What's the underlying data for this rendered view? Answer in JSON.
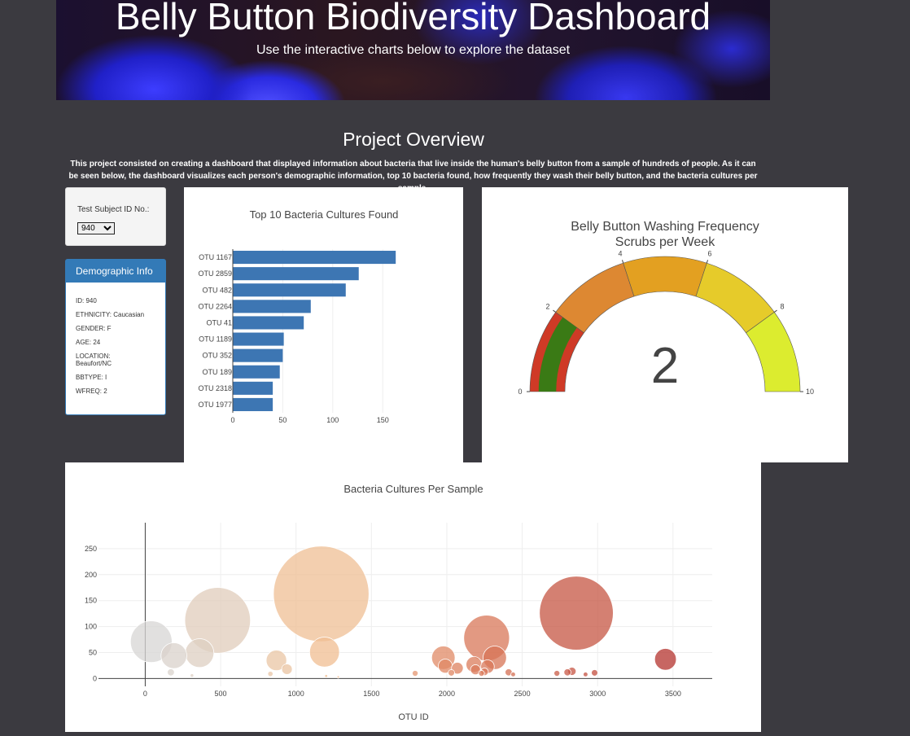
{
  "header": {
    "title": "Belly Button Biodiversity Dashboard",
    "subtitle": "Use the interactive charts below to explore the dataset"
  },
  "overview": {
    "title": "Project Overview",
    "text": "This project consisted on creating a dashboard that displayed information about bacteria that live inside the human's belly button from a sample of hundreds of people. As it can be seen below, the dashboard visualizes each person's demographic information, top 10 bacteria found, how frequently they wash their belly button, and the bacteria cultures per sample."
  },
  "selector": {
    "label": "Test Subject ID No.:",
    "selected": "940"
  },
  "demographics": {
    "title": "Demographic Info",
    "lines": [
      "ID: 940",
      "ETHNICITY: Caucasian",
      "GENDER: F",
      "AGE: 24",
      "LOCATION: Beaufort/NC",
      "BBTYPE: I",
      "WFREQ: 2"
    ]
  },
  "chart_data": [
    {
      "type": "bar",
      "orientation": "horizontal",
      "title": "Top 10 Bacteria Cultures Found",
      "categories": [
        "OTU 1167",
        "OTU 2859",
        "OTU 482",
        "OTU 2264",
        "OTU 41",
        "OTU 1189",
        "OTU 352",
        "OTU 189",
        "OTU 2318",
        "OTU 1977"
      ],
      "values": [
        163,
        126,
        113,
        78,
        71,
        51,
        50,
        47,
        40,
        40
      ],
      "xticks": [
        0,
        50,
        100,
        150
      ],
      "xlim": [
        0,
        171
      ],
      "color": "#3d76b3",
      "grid": true
    },
    {
      "type": "gauge",
      "title": "Belly Button Washing Frequency",
      "subtitle": "Scrubs per Week",
      "value": 2,
      "range": [
        0,
        10
      ],
      "ticks": [
        0,
        2,
        4,
        6,
        8,
        10
      ],
      "steps": [
        {
          "range": [
            0,
            2
          ],
          "color": "#cf3a26"
        },
        {
          "range": [
            2,
            4
          ],
          "color": "#dd8832"
        },
        {
          "range": [
            4,
            6
          ],
          "color": "#e3a021"
        },
        {
          "range": [
            6,
            8
          ],
          "color": "#e6cb2a"
        },
        {
          "range": [
            8,
            10
          ],
          "color": "#dcec2f"
        }
      ],
      "bar_color": "#3a7a15"
    },
    {
      "type": "scatter",
      "subtype": "bubble",
      "title": "Bacteria Cultures Per Sample",
      "xlabel": "OTU ID",
      "ylabel": "",
      "xlim": [
        -310,
        3760
      ],
      "ylim": [
        -15,
        300
      ],
      "xticks": [
        0,
        500,
        1000,
        1500,
        2000,
        2500,
        3000,
        3500
      ],
      "yticks": [
        0,
        50,
        100,
        150,
        200,
        250
      ],
      "grid": true,
      "points": [
        {
          "x": 40,
          "y": 71
        },
        {
          "x": 190,
          "y": 44
        },
        {
          "x": 360,
          "y": 49
        },
        {
          "x": 480,
          "y": 112
        },
        {
          "x": 170,
          "y": 12
        },
        {
          "x": 310,
          "y": 6
        },
        {
          "x": 870,
          "y": 35
        },
        {
          "x": 940,
          "y": 18
        },
        {
          "x": 830,
          "y": 9
        },
        {
          "x": 1167,
          "y": 163
        },
        {
          "x": 1189,
          "y": 51
        },
        {
          "x": 1200,
          "y": 5
        },
        {
          "x": 1280,
          "y": 3
        },
        {
          "x": 1790,
          "y": 10
        },
        {
          "x": 1977,
          "y": 40
        },
        {
          "x": 1990,
          "y": 24
        },
        {
          "x": 2030,
          "y": 11
        },
        {
          "x": 2070,
          "y": 20
        },
        {
          "x": 2180,
          "y": 27
        },
        {
          "x": 2190,
          "y": 17
        },
        {
          "x": 2230,
          "y": 10
        },
        {
          "x": 2264,
          "y": 78
        },
        {
          "x": 2318,
          "y": 40
        },
        {
          "x": 2270,
          "y": 23
        },
        {
          "x": 2250,
          "y": 13
        },
        {
          "x": 2410,
          "y": 12
        },
        {
          "x": 2440,
          "y": 8
        },
        {
          "x": 2730,
          "y": 10
        },
        {
          "x": 2800,
          "y": 12
        },
        {
          "x": 2830,
          "y": 14
        },
        {
          "x": 2859,
          "y": 126
        },
        {
          "x": 2920,
          "y": 8
        },
        {
          "x": 2980,
          "y": 11
        },
        {
          "x": 3450,
          "y": 37
        }
      ]
    }
  ]
}
